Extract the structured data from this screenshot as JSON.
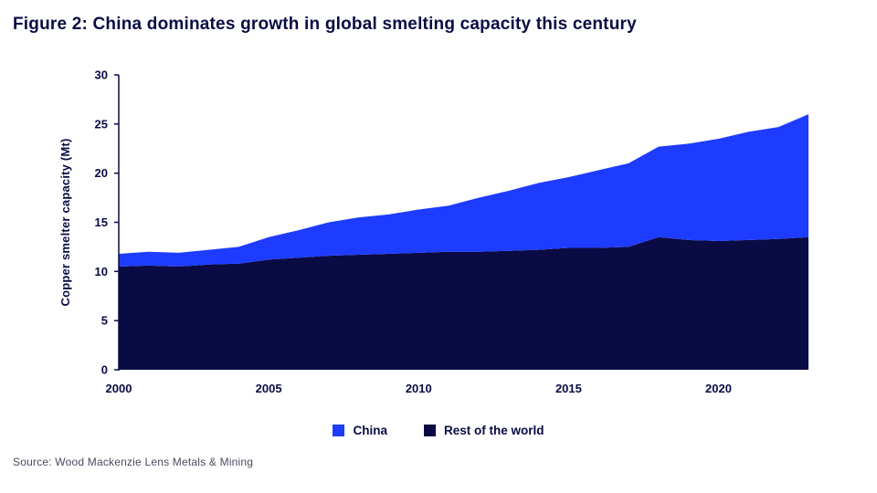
{
  "title": "Figure 2: China dominates growth in global smelting capacity this century",
  "source": "Source: Wood Mackenzie Lens Metals & Mining",
  "colors": {
    "navy": "#0a0b45",
    "bright_blue": "#1e3cff"
  },
  "chart_data": {
    "type": "area",
    "title": "Figure 2: China dominates growth in global smelting capacity this century",
    "xlabel": "",
    "ylabel": "Copper smelter capacity (Mt)",
    "ylim": [
      0,
      30
    ],
    "yticks": [
      0,
      5,
      10,
      15,
      20,
      25,
      30
    ],
    "xticks": [
      2000,
      2005,
      2010,
      2015,
      2020
    ],
    "grid": false,
    "legend_position": "bottom",
    "stack_order": [
      "Rest of the world",
      "China"
    ],
    "x": [
      2000,
      2001,
      2002,
      2003,
      2004,
      2005,
      2006,
      2007,
      2008,
      2009,
      2010,
      2011,
      2012,
      2013,
      2014,
      2015,
      2016,
      2017,
      2018,
      2019,
      2020,
      2021,
      2022,
      2023
    ],
    "series": [
      {
        "name": "China",
        "color": "#1e3cff",
        "values": [
          1.3,
          1.4,
          1.4,
          1.5,
          1.7,
          2.3,
          2.8,
          3.4,
          3.8,
          4.0,
          4.4,
          4.7,
          5.5,
          6.1,
          6.8,
          7.2,
          7.9,
          8.5,
          9.2,
          9.8,
          10.4,
          11.0,
          11.4,
          12.5
        ]
      },
      {
        "name": "Rest of the world",
        "color": "#0a0b45",
        "values": [
          10.5,
          10.6,
          10.5,
          10.7,
          10.8,
          11.2,
          11.4,
          11.6,
          11.7,
          11.8,
          11.9,
          12.0,
          12.0,
          12.1,
          12.2,
          12.4,
          12.4,
          12.5,
          13.5,
          13.2,
          13.1,
          13.2,
          13.3,
          13.5
        ]
      }
    ]
  }
}
